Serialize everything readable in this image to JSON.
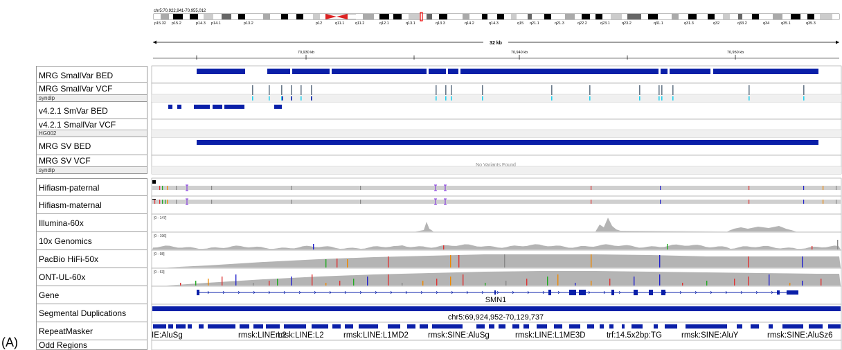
{
  "figure_label": "(A)",
  "locus": "chr5:70,922,941-70,955,012",
  "ideogram_bands": [
    "p15.32",
    "p15.2",
    "p14.3",
    "p14.1",
    "p13.2",
    "p12",
    "q11.1",
    "q11.2",
    "q12.1",
    "q13.1",
    "q13.3",
    "q14.2",
    "q14.3",
    "q15",
    "q21.1",
    "q21.3",
    "q22.2",
    "q23.1",
    "q23.2",
    "q31.1",
    "q31.3",
    "q32",
    "q33.2",
    "q34",
    "q35.1",
    "q35.3"
  ],
  "span_label": "32 kb",
  "ruler_ticks": [
    "70,930 kb",
    "70,940 kb",
    "70,950 kb"
  ],
  "tracks": [
    {
      "name": "MRG SmallVar BED",
      "sub": ""
    },
    {
      "name": "MRG SmallVar VCF",
      "sub": "syndip"
    },
    {
      "name": "v4.2.1 SmVar BED",
      "sub": ""
    },
    {
      "name": "v4.2.1 SmallVar VCF",
      "sub": "HG002"
    },
    {
      "name": "MRG SV BED",
      "sub": ""
    },
    {
      "name": "MRG SV VCF",
      "sub": "syndip"
    },
    {
      "name": "Hifiasm-paternal",
      "sub": ""
    },
    {
      "name": "Hifiasm-maternal",
      "sub": ""
    },
    {
      "name": "Illumina-60x",
      "sub": ""
    },
    {
      "name": "10x Genomics",
      "sub": ""
    },
    {
      "name": "PacBio HiFi-50x",
      "sub": ""
    },
    {
      "name": "ONT-UL-60x",
      "sub": ""
    },
    {
      "name": "Gene",
      "sub": ""
    },
    {
      "name": "Segmental Duplications",
      "sub": ""
    },
    {
      "name": "RepeatMasker",
      "sub": ""
    },
    {
      "name": "Odd Regions",
      "sub": ""
    }
  ],
  "no_variants_text": "No Variants Found",
  "coverage_ranges": [
    "[0 - 147]",
    "[0 - 196]",
    "[0 - 98]",
    "[0 - 63]"
  ],
  "gene_label": "SMN1",
  "segdup_label": "chr5:69,924,952-70,129,737",
  "repeat_labels": [
    "IE:AluSg",
    "rmsk:LINE:L2",
    "rmsk:LINE:L2",
    "rmsk:LINE:L1MD2",
    "rmsk:SINE:AluSg",
    "rmsk:LINE:L1ME3D",
    "trf:14.5x2bp:TG",
    "rmsk:SINE:AluY",
    "rmsk:SINE:AluSz6"
  ],
  "colors": {
    "feature": "#0a1fa8",
    "coverage": "#b4b4b4",
    "variant": "#6a7a8a",
    "het": "#22d0ee"
  }
}
